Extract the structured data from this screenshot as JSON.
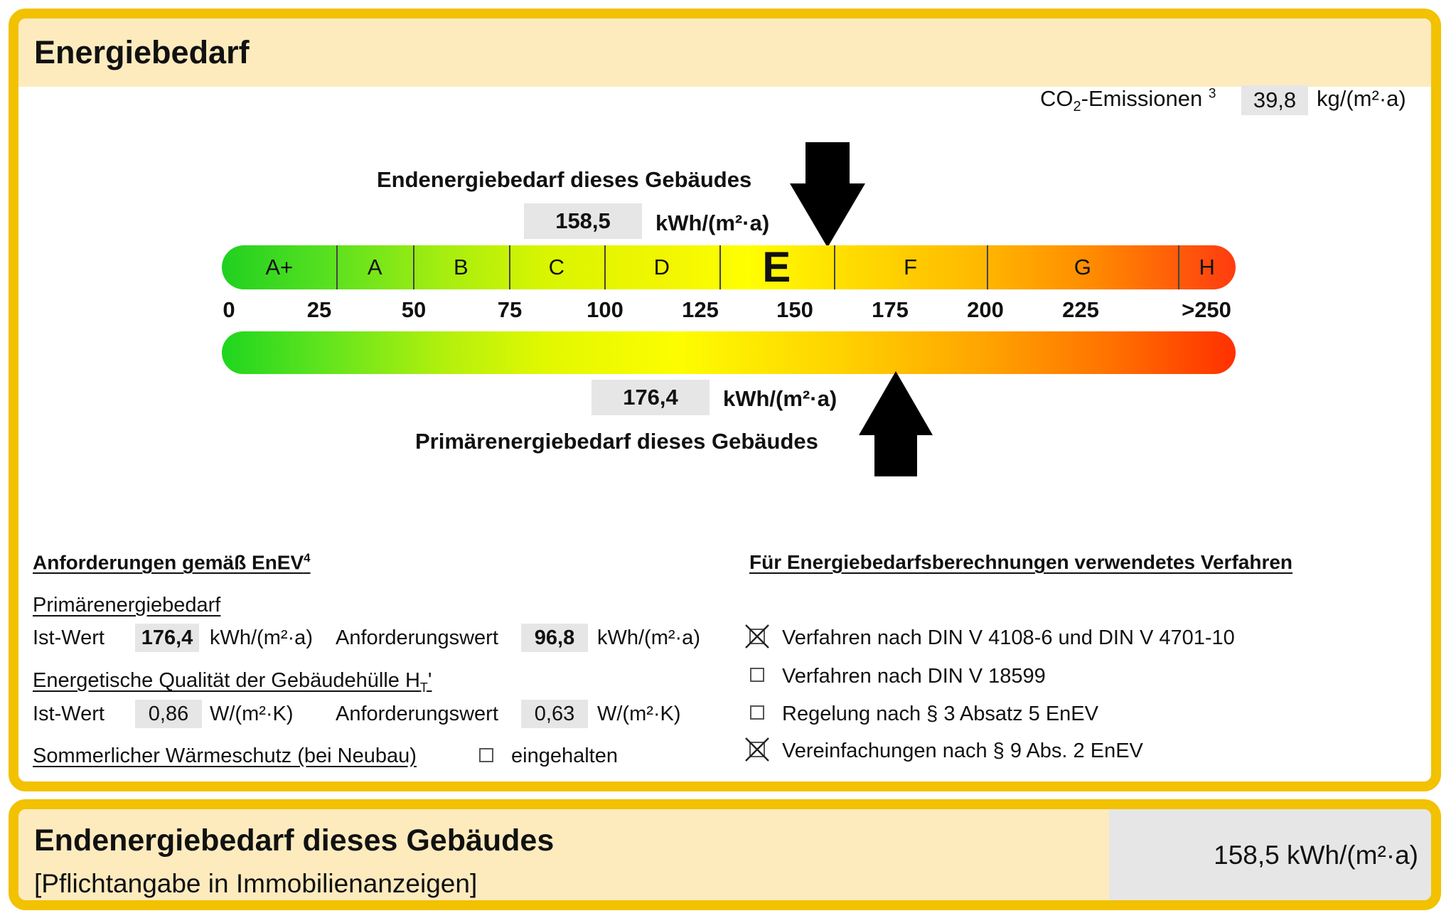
{
  "header": {
    "title": "Energiebedarf"
  },
  "co2": {
    "label_co": "CO",
    "label_sub": "2",
    "label_rest": "-Emissionen",
    "footnote": "3",
    "value": "39,8",
    "unit": "kg/(m²·a)"
  },
  "endenergie": {
    "label": "Endenergiebedarf dieses Gebäudes",
    "value": "158,5",
    "unit": "kWh/(m²·a)",
    "level": 158.5
  },
  "primaerenergie": {
    "label": "Primärenergiebedarf dieses Gebäudes",
    "value": "176,4",
    "unit": "kWh/(m²·a)",
    "level": 176.4
  },
  "scale": {
    "classes": [
      {
        "label": "A+",
        "from": 0,
        "to": 30
      },
      {
        "label": "A",
        "from": 30,
        "to": 50
      },
      {
        "label": "B",
        "from": 50,
        "to": 75
      },
      {
        "label": "C",
        "from": 75,
        "to": 100
      },
      {
        "label": "D",
        "from": 100,
        "to": 130
      },
      {
        "label": "E",
        "from": 130,
        "to": 160
      },
      {
        "label": "F",
        "from": 160,
        "to": 200
      },
      {
        "label": "G",
        "from": 200,
        "to": 250
      },
      {
        "label": "H",
        "from": 250,
        "to": 265
      }
    ],
    "active_class": "E",
    "ticks": [
      "0",
      "25",
      "50",
      "75",
      "100",
      "125",
      "150",
      "175",
      "200",
      "225",
      ">250"
    ]
  },
  "anforderungen": {
    "heading": "Anforderungen gemäß EnEV",
    "footnote": "4",
    "primaer": {
      "title": "Primärenergiebedarf",
      "ist_label": "Ist-Wert",
      "ist_value": "176,4",
      "ist_unit": "kWh/(m²·a)",
      "anf_label": "Anforderungswert",
      "anf_value": "96,8",
      "anf_unit": "kWh/(m²·a)"
    },
    "huelle": {
      "title": "Energetische Qualität der Gebäudehülle H",
      "title_sub": "T",
      "title_suffix": "'",
      "ist_label": "Ist-Wert",
      "ist_value": "0,86",
      "ist_unit": "W/(m²·K)",
      "anf_label": "Anforderungswert",
      "anf_value": "0,63",
      "anf_unit": "W/(m²·K)"
    },
    "sommer": {
      "title": "Sommerlicher Wärmeschutz (bei Neubau)",
      "check_label": "eingehalten",
      "checked": false
    }
  },
  "verfahren": {
    "heading": "Für Energiebedarfsberechnungen verwendetes Verfahren",
    "options": [
      {
        "label": "Verfahren nach DIN V 4108-6 und DIN V 4701-10",
        "checked": true
      },
      {
        "label": "Verfahren nach DIN V 18599",
        "checked": false
      },
      {
        "label": "Regelung nach § 3 Absatz 5 EnEV",
        "checked": false
      },
      {
        "label": "Vereinfachungen nach § 9 Abs. 2 EnEV",
        "checked": true
      }
    ]
  },
  "footer": {
    "title": "Endenergiebedarf dieses Gebäudes",
    "subtitle": "[Pflichtangabe in Immobilienanzeigen]",
    "value": "158,5 kWh/(m²·a)"
  }
}
